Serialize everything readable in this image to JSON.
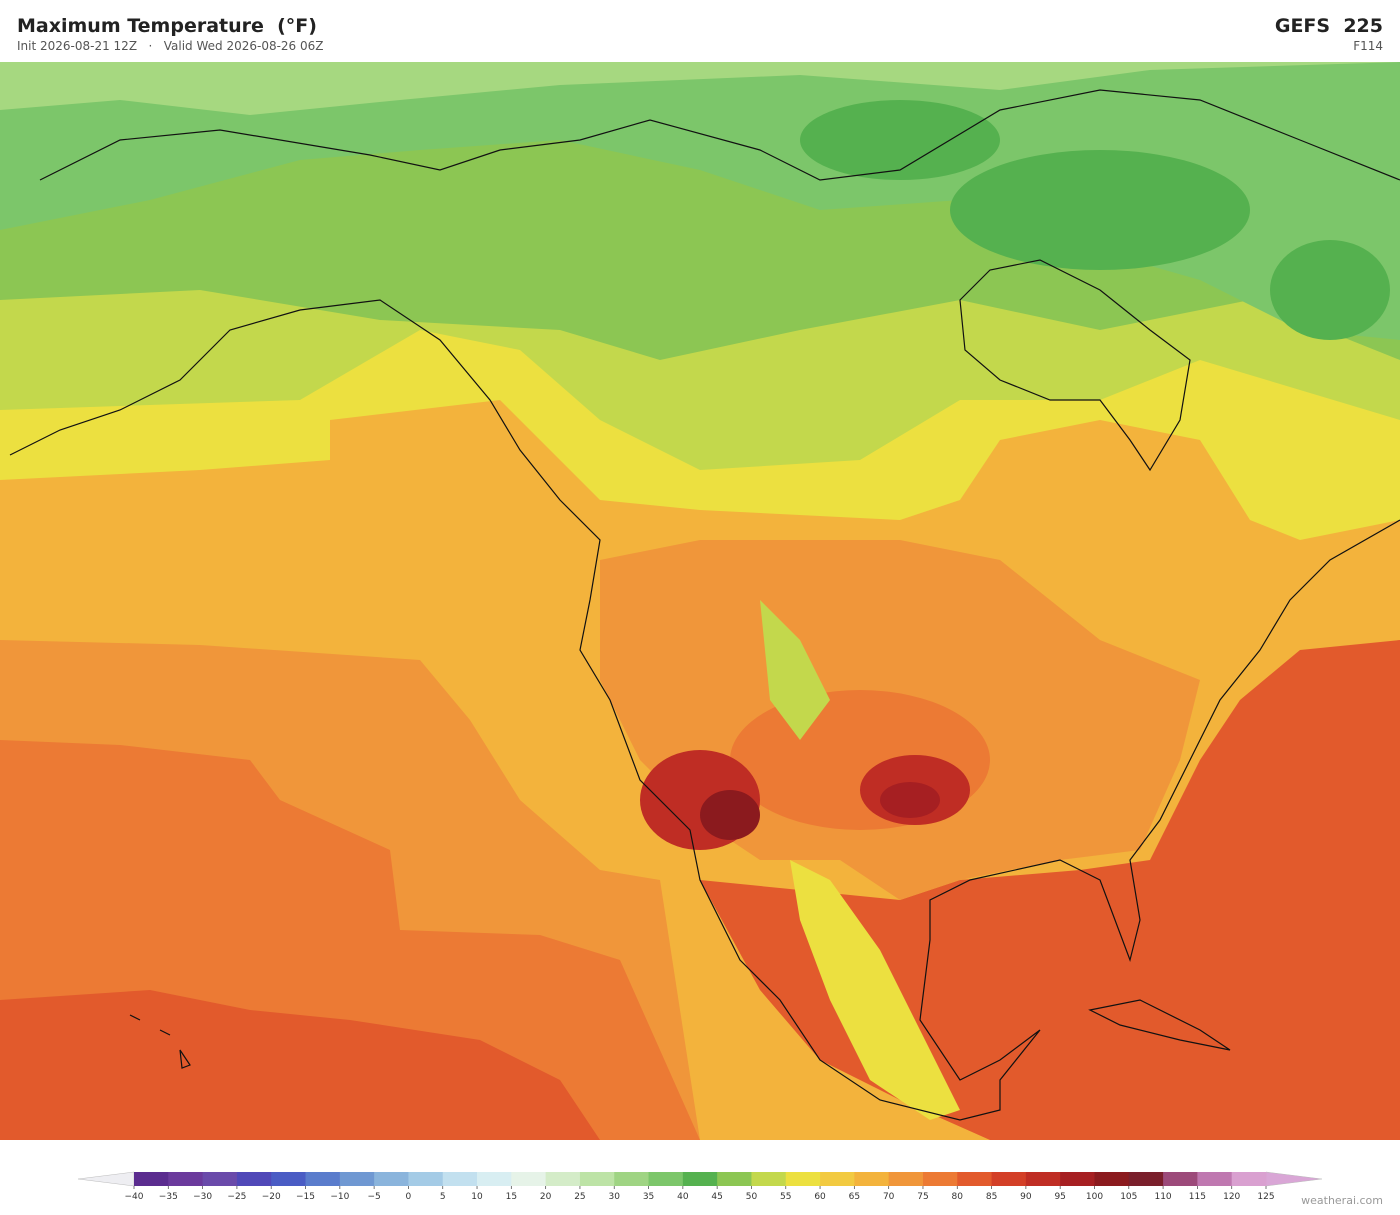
{
  "header": {
    "title": "Maximum Temperature  (°F)",
    "subtitle": "Init 2026-08-21 12Z   ·   Valid Wed 2026-08-26 06Z",
    "model": "GEFS  225",
    "forecast_hour": "F114"
  },
  "colorbar": {
    "ticks": [
      {
        "value": -40,
        "label": "−40"
      },
      {
        "value": -35,
        "label": "−35"
      },
      {
        "value": -30,
        "label": "−30"
      },
      {
        "value": -25,
        "label": "−25"
      },
      {
        "value": -20,
        "label": "−20"
      },
      {
        "value": -15,
        "label": "−15"
      },
      {
        "value": -10,
        "label": "−10"
      },
      {
        "value": -5,
        "label": "−5"
      },
      0,
      5,
      10,
      15,
      20,
      25,
      30,
      35,
      40,
      45,
      50,
      55,
      60,
      65,
      70,
      75,
      80,
      85,
      90,
      95,
      100,
      105,
      110,
      115,
      120,
      125
    ],
    "colors": [
      "#5b2c8f",
      "#6b3a9c",
      "#6a4aaa",
      "#5048b8",
      "#4a5cc4",
      "#5a7ccc",
      "#6f98d2",
      "#8ab4dc",
      "#a4cbe6",
      "#c2e0ef",
      "#d8eef2",
      "#e6f3e8",
      "#d4ecc8",
      "#bde3a6",
      "#9fd483",
      "#7cc66a",
      "#55b14f",
      "#8cc653",
      "#c3d84c",
      "#ece040",
      "#f2ca41",
      "#f3b33c",
      "#f0963a",
      "#ec7a34",
      "#e25a2c",
      "#d33f27",
      "#bf2d24",
      "#a61f22",
      "#8b1a1e",
      "#7a1f2b",
      "#9c4a7a",
      "#bf78b0",
      "#d9a0d0"
    ],
    "under_color": "#eeeef2",
    "over_color": "#d9a6d6"
  },
  "watermark": "weatherai.com"
}
